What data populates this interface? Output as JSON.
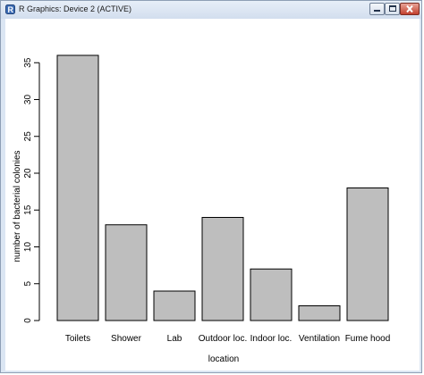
{
  "window": {
    "title": "R Graphics: Device 2 (ACTIVE)",
    "buttons": {
      "minimize": "minimize-icon",
      "maximize": "maximize-icon",
      "close": "close-icon"
    }
  },
  "chart_data": {
    "type": "bar",
    "categories": [
      "Toilets",
      "Shower",
      "Lab",
      "Outdoor loc.",
      "Indoor loc.",
      "Ventilation",
      "Fume hood"
    ],
    "values": [
      36,
      13,
      4,
      14,
      7,
      2,
      18
    ],
    "title": "",
    "xlabel": "location",
    "ylabel": "number of bacterial colonies",
    "ylim": [
      0,
      36
    ],
    "yticks": [
      0,
      5,
      10,
      15,
      20,
      25,
      30,
      35
    ],
    "bar_color": "#bebebe",
    "grid": false
  }
}
